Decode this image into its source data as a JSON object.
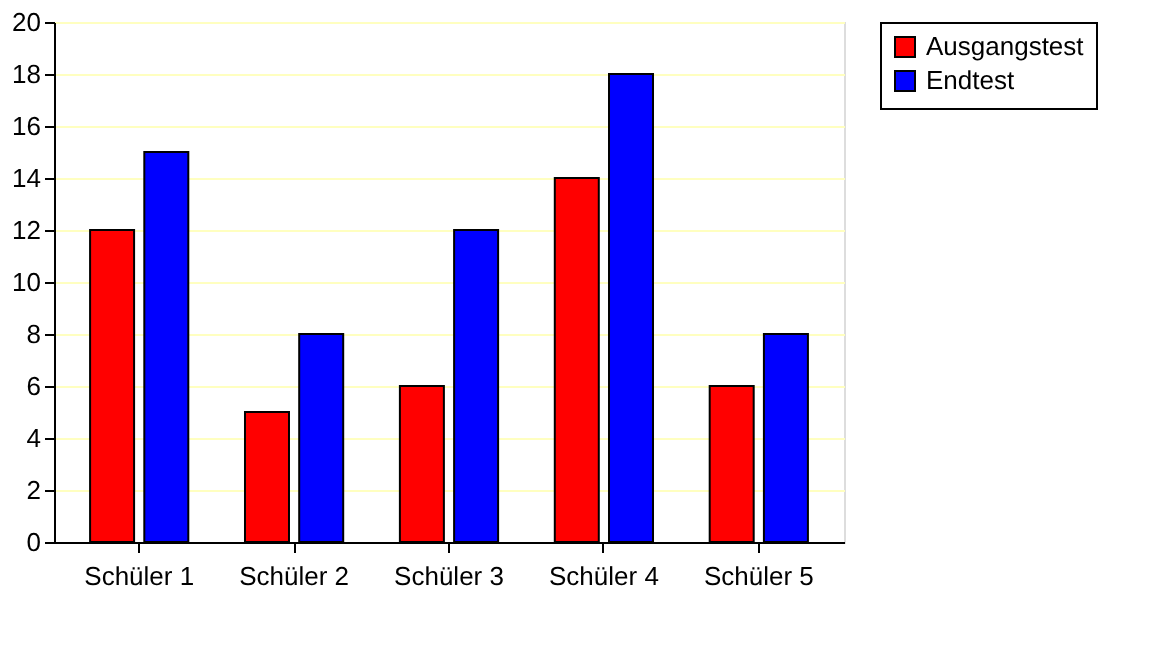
{
  "chart_data": {
    "type": "bar",
    "categories": [
      "Schüler 1",
      "Schüler 2",
      "Schüler 3",
      "Schüler 4",
      "Schüler 5"
    ],
    "series": [
      {
        "name": "Ausgangstest",
        "color": "#ff0000",
        "values": [
          12,
          5,
          6,
          14,
          6
        ]
      },
      {
        "name": "Endtest",
        "color": "#0000ff",
        "values": [
          15,
          8,
          12,
          18,
          8
        ]
      }
    ],
    "ylim": [
      0,
      20
    ],
    "yticks": [
      0,
      2,
      4,
      6,
      8,
      10,
      12,
      14,
      16,
      18,
      20
    ],
    "grid": "y",
    "legend": "right"
  }
}
